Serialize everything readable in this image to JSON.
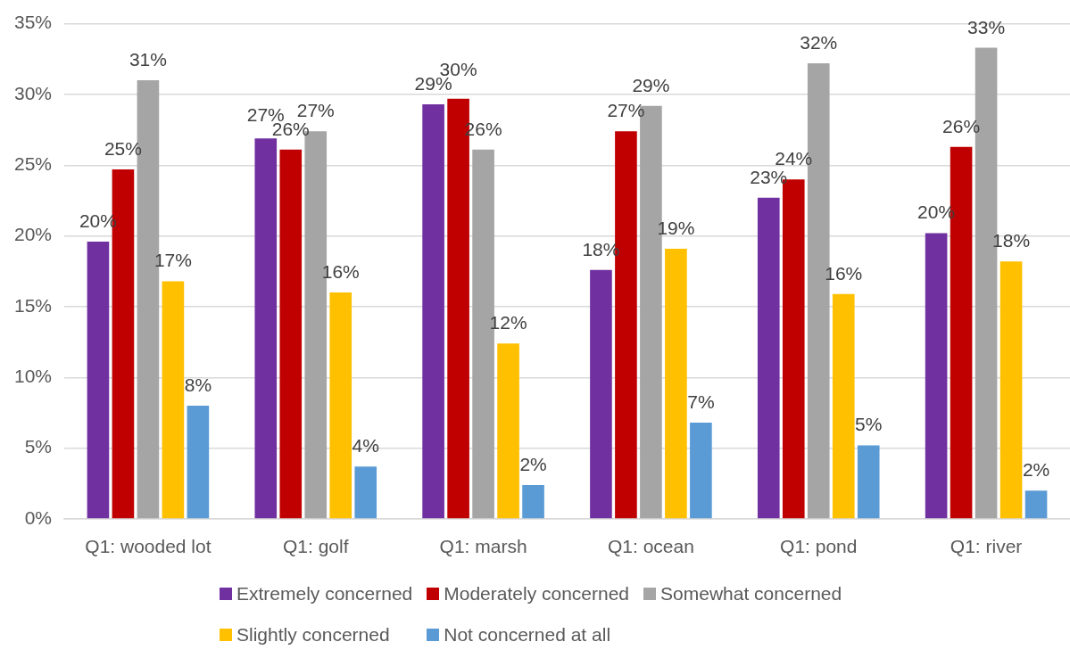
{
  "chart_data": {
    "type": "bar",
    "categories": [
      "Q1: wooded lot",
      "Q1: golf",
      "Q1: marsh",
      "Q1: ocean",
      "Q1: pond",
      "Q1: river"
    ],
    "series": [
      {
        "name": "Extremely concerned",
        "color": "#7030a0",
        "values": [
          19.6,
          26.9,
          29.3,
          17.6,
          22.7,
          20.2
        ],
        "value_labels": [
          "20%",
          "27%",
          "29%",
          "18%",
          "23%",
          "20%"
        ]
      },
      {
        "name": "Moderately concerned",
        "color": "#c00000",
        "values": [
          24.7,
          26.1,
          29.7,
          27.4,
          24.0,
          26.3
        ],
        "value_labels": [
          "25%",
          "26%",
          "30%",
          "27%",
          "24%",
          "26%"
        ]
      },
      {
        "name": "Somewhat concerned",
        "color": "#a5a5a5",
        "values": [
          31.0,
          27.4,
          26.1,
          29.2,
          32.2,
          33.3
        ],
        "value_labels": [
          "31%",
          "27%",
          "26%",
          "29%",
          "32%",
          "33%"
        ]
      },
      {
        "name": "Slightly concerned",
        "color": "#ffc000",
        "values": [
          16.8,
          16.0,
          12.4,
          19.1,
          15.9,
          18.2
        ],
        "value_labels": [
          "17%",
          "16%",
          "12%",
          "19%",
          "16%",
          "18%"
        ]
      },
      {
        "name": "Not concerned at all",
        "color": "#5b9bd5",
        "values": [
          8.0,
          3.7,
          2.4,
          6.8,
          5.2,
          2.0
        ],
        "value_labels": [
          "8%",
          "4%",
          "2%",
          "7%",
          "5%",
          "2%"
        ]
      }
    ],
    "ylim": [
      0,
      35
    ],
    "yticks": [
      {
        "value": 0,
        "label": "0%"
      },
      {
        "value": 5,
        "label": "5%"
      },
      {
        "value": 10,
        "label": "10%"
      },
      {
        "value": 15,
        "label": "15%"
      },
      {
        "value": 20,
        "label": "20%"
      },
      {
        "value": 25,
        "label": "25%"
      },
      {
        "value": 30,
        "label": "30%"
      },
      {
        "value": 35,
        "label": "35%"
      }
    ],
    "grid": "y",
    "legend": "bottom"
  }
}
